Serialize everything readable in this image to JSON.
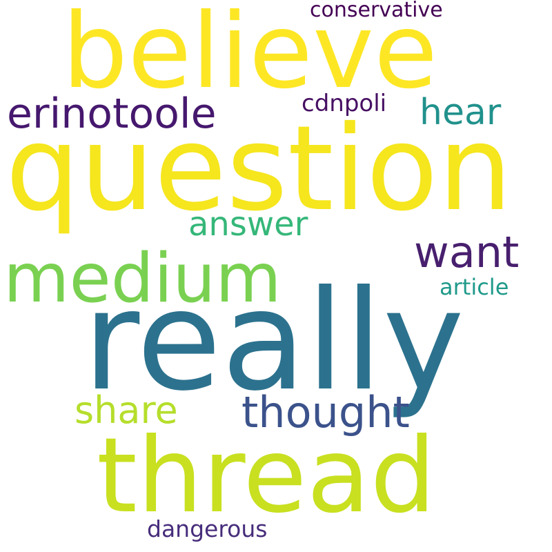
{
  "words": {
    "believe": {
      "text": "believe",
      "color": "#fde725"
    },
    "question": {
      "text": "question",
      "color": "#f5e61e"
    },
    "really": {
      "text": "really",
      "color": "#2c728e"
    },
    "thread": {
      "text": "thread",
      "color": "#c8e020"
    },
    "medium": {
      "text": "medium",
      "color": "#7ad151"
    },
    "erinotoole": {
      "text": "erinotoole",
      "color": "#46186e"
    },
    "thought": {
      "text": "thought",
      "color": "#3b528b"
    },
    "want": {
      "text": "want",
      "color": "#481f6e"
    },
    "share": {
      "text": "share",
      "color": "#b5de2b"
    },
    "answer": {
      "text": "answer",
      "color": "#35b779"
    },
    "hear": {
      "text": "hear",
      "color": "#21918c"
    },
    "cdnpoli": {
      "text": "cdnpoli",
      "color": "#471063"
    },
    "conservative": {
      "text": "conservative",
      "color": "#440154"
    },
    "article": {
      "text": "article",
      "color": "#1f9a8a"
    },
    "dangerous": {
      "text": "dangerous",
      "color": "#472d7b"
    }
  }
}
